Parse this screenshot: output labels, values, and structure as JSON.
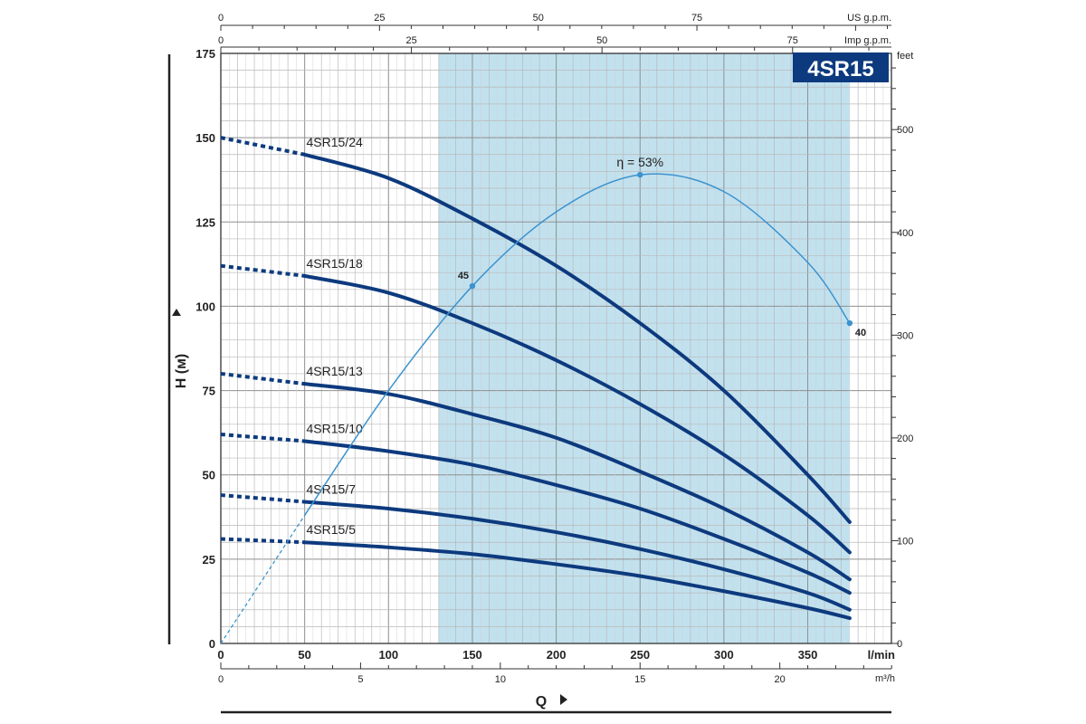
{
  "chart_data": {
    "type": "line",
    "title": "4SR15",
    "ylabel": "H (м)",
    "xlabel": "Q",
    "x_unit": "l/min",
    "xlim": [
      0,
      400
    ],
    "ylim": [
      0,
      175
    ],
    "x_ticks": [
      0,
      50,
      100,
      150,
      200,
      250,
      300,
      350
    ],
    "y_ticks": [
      0,
      25,
      50,
      75,
      100,
      125,
      150,
      175
    ],
    "right_axis": {
      "unit": "feet",
      "ticks": [
        0,
        100,
        200,
        300,
        400,
        500
      ]
    },
    "top_axes": [
      {
        "unit": "US g.p.m.",
        "ticks": [
          0,
          25,
          50,
          75
        ]
      },
      {
        "unit": "Imp g.p.m.",
        "ticks": [
          0,
          25,
          50,
          75
        ]
      }
    ],
    "bottom_axis2": {
      "unit": "m³/h",
      "ticks": [
        0,
        5,
        10,
        15,
        20
      ]
    },
    "shaded_region": [
      130,
      375
    ],
    "grid": true,
    "colors": {
      "curve": "#0d3a7e",
      "efficiency": "#3b93cf",
      "shade": "#b7dceb",
      "badge": "#0d3a7e"
    },
    "series": [
      {
        "name": "4SR15/24",
        "x": [
          0,
          50,
          100,
          150,
          200,
          250,
          300,
          350,
          375
        ],
        "y": [
          150,
          145,
          138,
          126,
          112,
          95,
          75,
          50,
          36
        ]
      },
      {
        "name": "4SR15/18",
        "x": [
          0,
          50,
          100,
          150,
          200,
          250,
          300,
          350,
          375
        ],
        "y": [
          112,
          109,
          104,
          95,
          84,
          71,
          56,
          38,
          27
        ]
      },
      {
        "name": "4SR15/13",
        "x": [
          0,
          50,
          100,
          150,
          200,
          250,
          300,
          350,
          375
        ],
        "y": [
          80,
          77,
          74,
          68,
          61,
          51,
          40,
          27,
          19
        ]
      },
      {
        "name": "4SR15/10",
        "x": [
          0,
          50,
          100,
          150,
          200,
          250,
          300,
          350,
          375
        ],
        "y": [
          62,
          60,
          57,
          53,
          47,
          40,
          31,
          21,
          15
        ]
      },
      {
        "name": "4SR15/7",
        "x": [
          0,
          50,
          100,
          150,
          200,
          250,
          300,
          350,
          375
        ],
        "y": [
          44,
          42,
          40,
          37,
          33,
          28,
          22,
          15,
          10
        ]
      },
      {
        "name": "4SR15/5",
        "x": [
          0,
          50,
          100,
          150,
          200,
          250,
          300,
          350,
          375
        ],
        "y": [
          31,
          30,
          28.5,
          26.5,
          23.5,
          20,
          15.5,
          10.5,
          7.5
        ]
      }
    ],
    "efficiency_curve": {
      "x": [
        0,
        50,
        100,
        150,
        200,
        250,
        300,
        350,
        375
      ],
      "y": [
        0,
        38,
        75,
        106,
        128,
        139,
        134,
        113,
        95
      ],
      "dashed_until": 50,
      "markers": [
        {
          "x": 150,
          "y": 106,
          "label": "45"
        },
        {
          "x": 250,
          "y": 139,
          "label": "η = 53%"
        },
        {
          "x": 375,
          "y": 95,
          "label": "40"
        }
      ]
    }
  }
}
